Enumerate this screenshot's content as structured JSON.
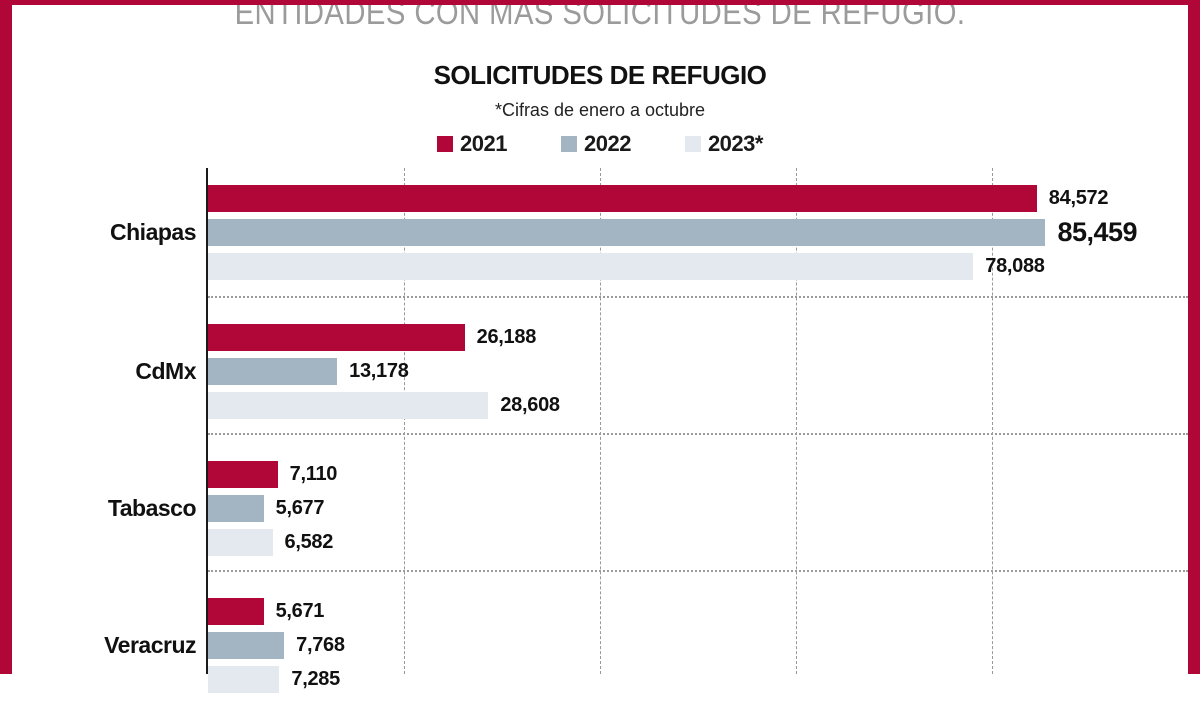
{
  "page": {
    "header_title": "ENTIDADES CON MÁS SOLICITUDES DE REFUGIO.",
    "accent_color": "#b00738",
    "header_text_color": "#9b9b9b"
  },
  "chart_data": {
    "type": "bar",
    "orientation": "horizontal",
    "title": "SOLICITUDES DE REFUGIO",
    "subtitle": "*Cifras de enero a octubre",
    "legend_position": "top",
    "grid": true,
    "categories": [
      "Chiapas",
      "CdMx",
      "Tabasco",
      "Veracruz"
    ],
    "series": [
      {
        "name": "2021",
        "color": "#b00738",
        "values": [
          84572,
          26188,
          7110,
          5671
        ],
        "labels": [
          "84,572",
          "26,188",
          "7,110",
          "5,671"
        ]
      },
      {
        "name": "2022",
        "color": "#a3b4c2",
        "values": [
          85459,
          13178,
          5677,
          7768
        ],
        "labels": [
          "85,459",
          "13,178",
          "5,677",
          "7,768"
        ]
      },
      {
        "name": "2023*",
        "color": "#e4e9ef",
        "values": [
          78088,
          28608,
          6582,
          7285
        ],
        "labels": [
          "78,088",
          "28,608",
          "6,582",
          "7,285"
        ]
      }
    ],
    "highlight": {
      "category": "Chiapas",
      "series": "2022",
      "label": "85,459"
    },
    "xlim": [
      0,
      100000
    ],
    "gridline_values": [
      20000,
      40000,
      60000,
      80000
    ]
  }
}
